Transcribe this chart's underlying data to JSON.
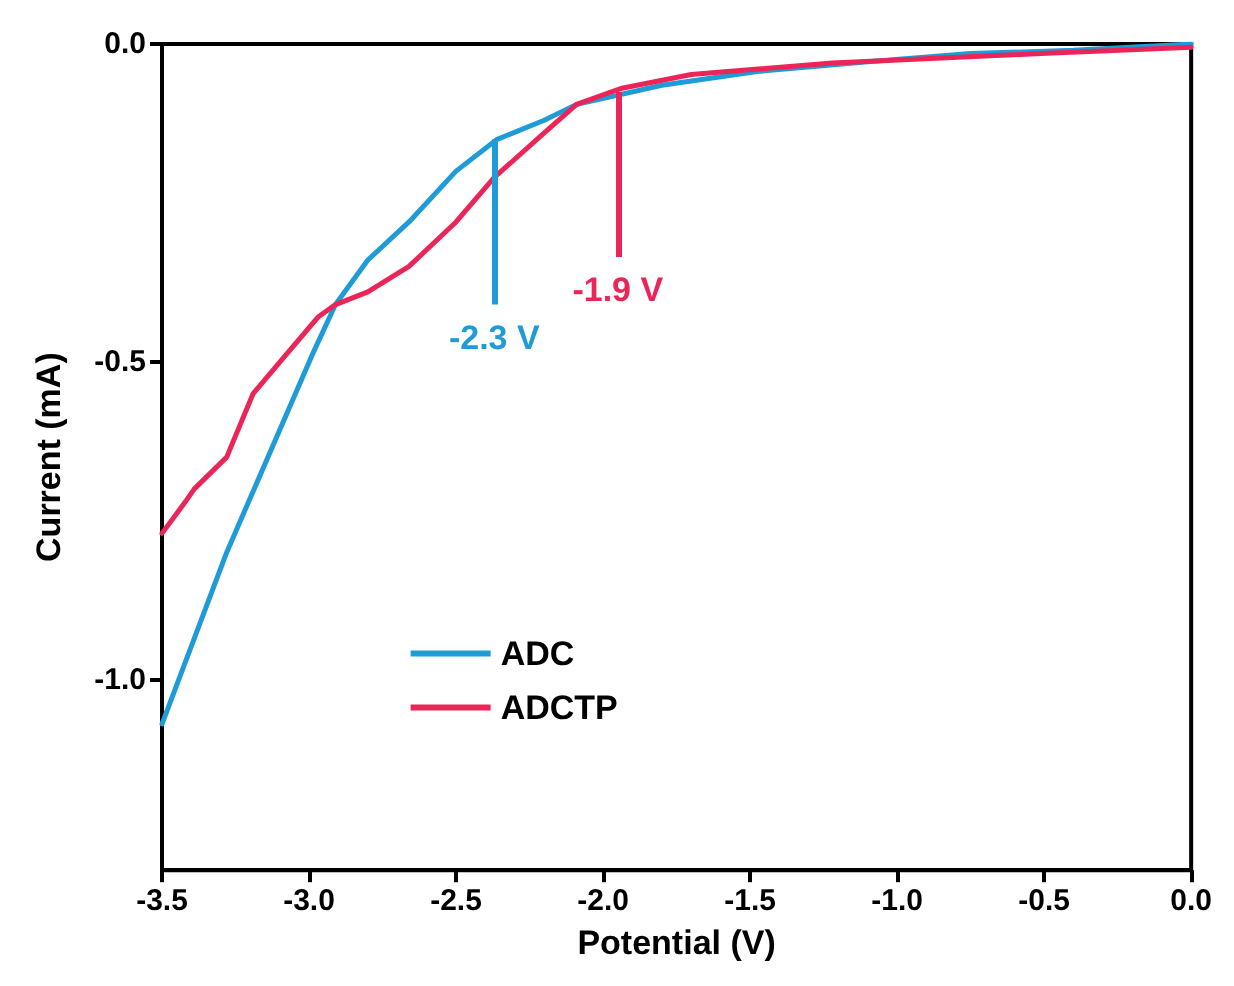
{
  "chart_data": {
    "type": "line",
    "xlabel": "Potential (V)",
    "ylabel": "Current (mA)",
    "xlim": [
      -3.5,
      0
    ],
    "ylim": [
      -1.3,
      0
    ],
    "xticks": [
      -3.5,
      {
        "value": -3,
        "label": "-3.0"
      },
      -2.5,
      {
        "value": -2,
        "label": "-2.0"
      },
      -1.5,
      {
        "value": -1,
        "label": "-1.0"
      },
      -0.5,
      {
        "value": 0,
        "label": "0.0"
      }
    ],
    "yticks": [
      {
        "value": 0,
        "label": "0.0"
      },
      -0.5,
      {
        "value": -1,
        "label": "-1.0"
      }
    ],
    "grid": false,
    "legend": "bottom left",
    "line_style": "solid",
    "marker": "none",
    "series": [
      {
        "name": "ADC",
        "color": "#1f9bd7",
        "x": [
          -3.5,
          -3.28,
          -2.99,
          -2.91,
          -2.8,
          -2.66,
          -2.5,
          -2.36,
          -2.2,
          -2.09,
          -1.8,
          -1.47,
          -1.1,
          -0.75,
          -0.4,
          0
        ],
        "values": [
          -1.07,
          -0.8,
          -0.49,
          -0.41,
          -0.34,
          -0.28,
          -0.2,
          -0.15,
          -0.12,
          -0.095,
          -0.065,
          -0.043,
          -0.028,
          -0.015,
          -0.01,
          0
        ]
      },
      {
        "name": "ADCTP",
        "color": "#ec2559",
        "x": [
          -3.5,
          -3.42,
          -3.39,
          -3.28,
          -3.19,
          -3.08,
          -2.97,
          -2.91,
          -2.8,
          -2.66,
          -2.5,
          -2.37,
          -2.2,
          -2.09,
          -1.94,
          -1.7,
          -1.22,
          -0.51,
          0
        ],
        "values": [
          -0.77,
          -0.72,
          -0.7,
          -0.65,
          -0.55,
          -0.49,
          -0.43,
          -0.41,
          -0.39,
          -0.35,
          -0.28,
          -0.21,
          -0.14,
          -0.095,
          -0.07,
          -0.048,
          -0.03,
          -0.015,
          -0.005
        ]
      }
    ],
    "annotations": [
      {
        "text": "-2.3 V",
        "x": -2.37,
        "y": -0.15
      },
      {
        "text": "-1.9 V",
        "x": -1.95,
        "y": -0.075
      }
    ]
  }
}
